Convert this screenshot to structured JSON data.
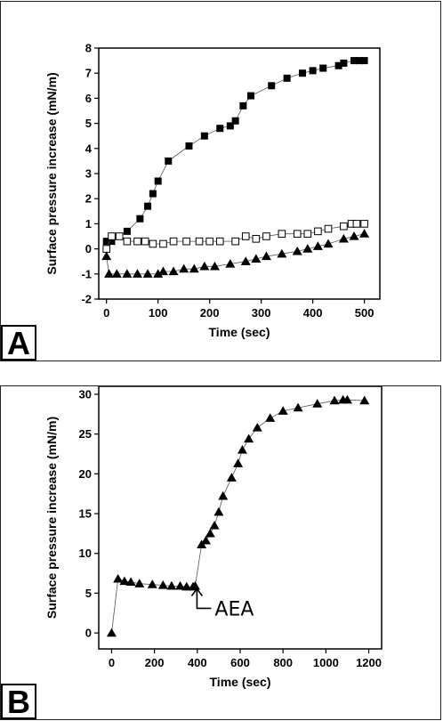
{
  "chart_data": [
    {
      "panel": "A",
      "type": "scatter",
      "xlabel": "Time (sec)",
      "ylabel": "Surface pressure increase (mN/m)",
      "xlim": [
        -15,
        530
      ],
      "ylim": [
        -2,
        8
      ],
      "xticks": [
        0,
        100,
        200,
        300,
        400,
        500
      ],
      "yticks": [
        -2,
        -1,
        0,
        1,
        2,
        3,
        4,
        5,
        6,
        7,
        8
      ],
      "series": [
        {
          "marker": "square-filled",
          "x": [
            0,
            10,
            40,
            65,
            80,
            90,
            100,
            120,
            160,
            190,
            220,
            240,
            250,
            265,
            280,
            320,
            350,
            380,
            400,
            420,
            450,
            460,
            480,
            490,
            500
          ],
          "y": [
            0.3,
            0.3,
            0.7,
            1.2,
            1.7,
            2.2,
            2.7,
            3.5,
            4.1,
            4.5,
            4.8,
            4.9,
            5.1,
            5.7,
            6.1,
            6.5,
            6.8,
            7.0,
            7.1,
            7.2,
            7.3,
            7.4,
            7.5,
            7.5,
            7.5
          ]
        },
        {
          "marker": "square-open",
          "x": [
            0,
            10,
            25,
            40,
            60,
            75,
            90,
            110,
            130,
            155,
            180,
            200,
            220,
            250,
            270,
            290,
            310,
            340,
            370,
            390,
            410,
            430,
            460,
            475,
            485,
            500
          ],
          "y": [
            0,
            0.5,
            0.5,
            0.3,
            0.3,
            0.3,
            0.2,
            0.2,
            0.3,
            0.3,
            0.3,
            0.3,
            0.3,
            0.3,
            0.5,
            0.4,
            0.5,
            0.6,
            0.6,
            0.6,
            0.7,
            0.8,
            0.9,
            1.0,
            1.0,
            1.0
          ]
        },
        {
          "marker": "triangle-filled",
          "x": [
            0,
            5,
            20,
            40,
            60,
            80,
            100,
            110,
            130,
            150,
            170,
            190,
            210,
            240,
            270,
            290,
            310,
            340,
            370,
            390,
            410,
            430,
            460,
            480,
            500
          ],
          "y": [
            -0.3,
            -1.0,
            -1.0,
            -1.0,
            -1.0,
            -1.0,
            -1.0,
            -0.9,
            -0.9,
            -0.8,
            -0.8,
            -0.7,
            -0.7,
            -0.6,
            -0.5,
            -0.4,
            -0.3,
            -0.2,
            -0.1,
            0,
            0.1,
            0.2,
            0.4,
            0.5,
            0.6
          ]
        }
      ]
    },
    {
      "panel": "B",
      "type": "scatter",
      "xlabel": "Time (sec)",
      "ylabel": "Surface pressure increase (mN/m)",
      "xlim": [
        -60,
        1260
      ],
      "ylim": [
        -2,
        31
      ],
      "xticks": [
        0,
        200,
        400,
        600,
        800,
        1000,
        1200
      ],
      "yticks": [
        0,
        5,
        10,
        15,
        20,
        25,
        30
      ],
      "annotation": {
        "text": "AEA",
        "x": 390,
        "y": 6
      },
      "series": [
        {
          "marker": "triangle-filled",
          "x": [
            0,
            30,
            60,
            90,
            130,
            190,
            240,
            280,
            320,
            350,
            380,
            390,
            420,
            440,
            460,
            480,
            500,
            520,
            560,
            590,
            610,
            640,
            680,
            740,
            800,
            870,
            960,
            1040,
            1080,
            1100,
            1180
          ],
          "y": [
            0,
            6.8,
            6.5,
            6.4,
            6.2,
            6.1,
            6.0,
            5.9,
            5.9,
            5.8,
            5.8,
            5.9,
            11.1,
            11.6,
            12.5,
            13.5,
            15.2,
            17.2,
            19.5,
            21.3,
            23.0,
            24.4,
            25.8,
            27.0,
            27.9,
            28.3,
            28.8,
            29.2,
            29.3,
            29.3,
            29.2
          ]
        }
      ]
    }
  ],
  "panels": {
    "a_label": "A",
    "b_label": "B"
  }
}
